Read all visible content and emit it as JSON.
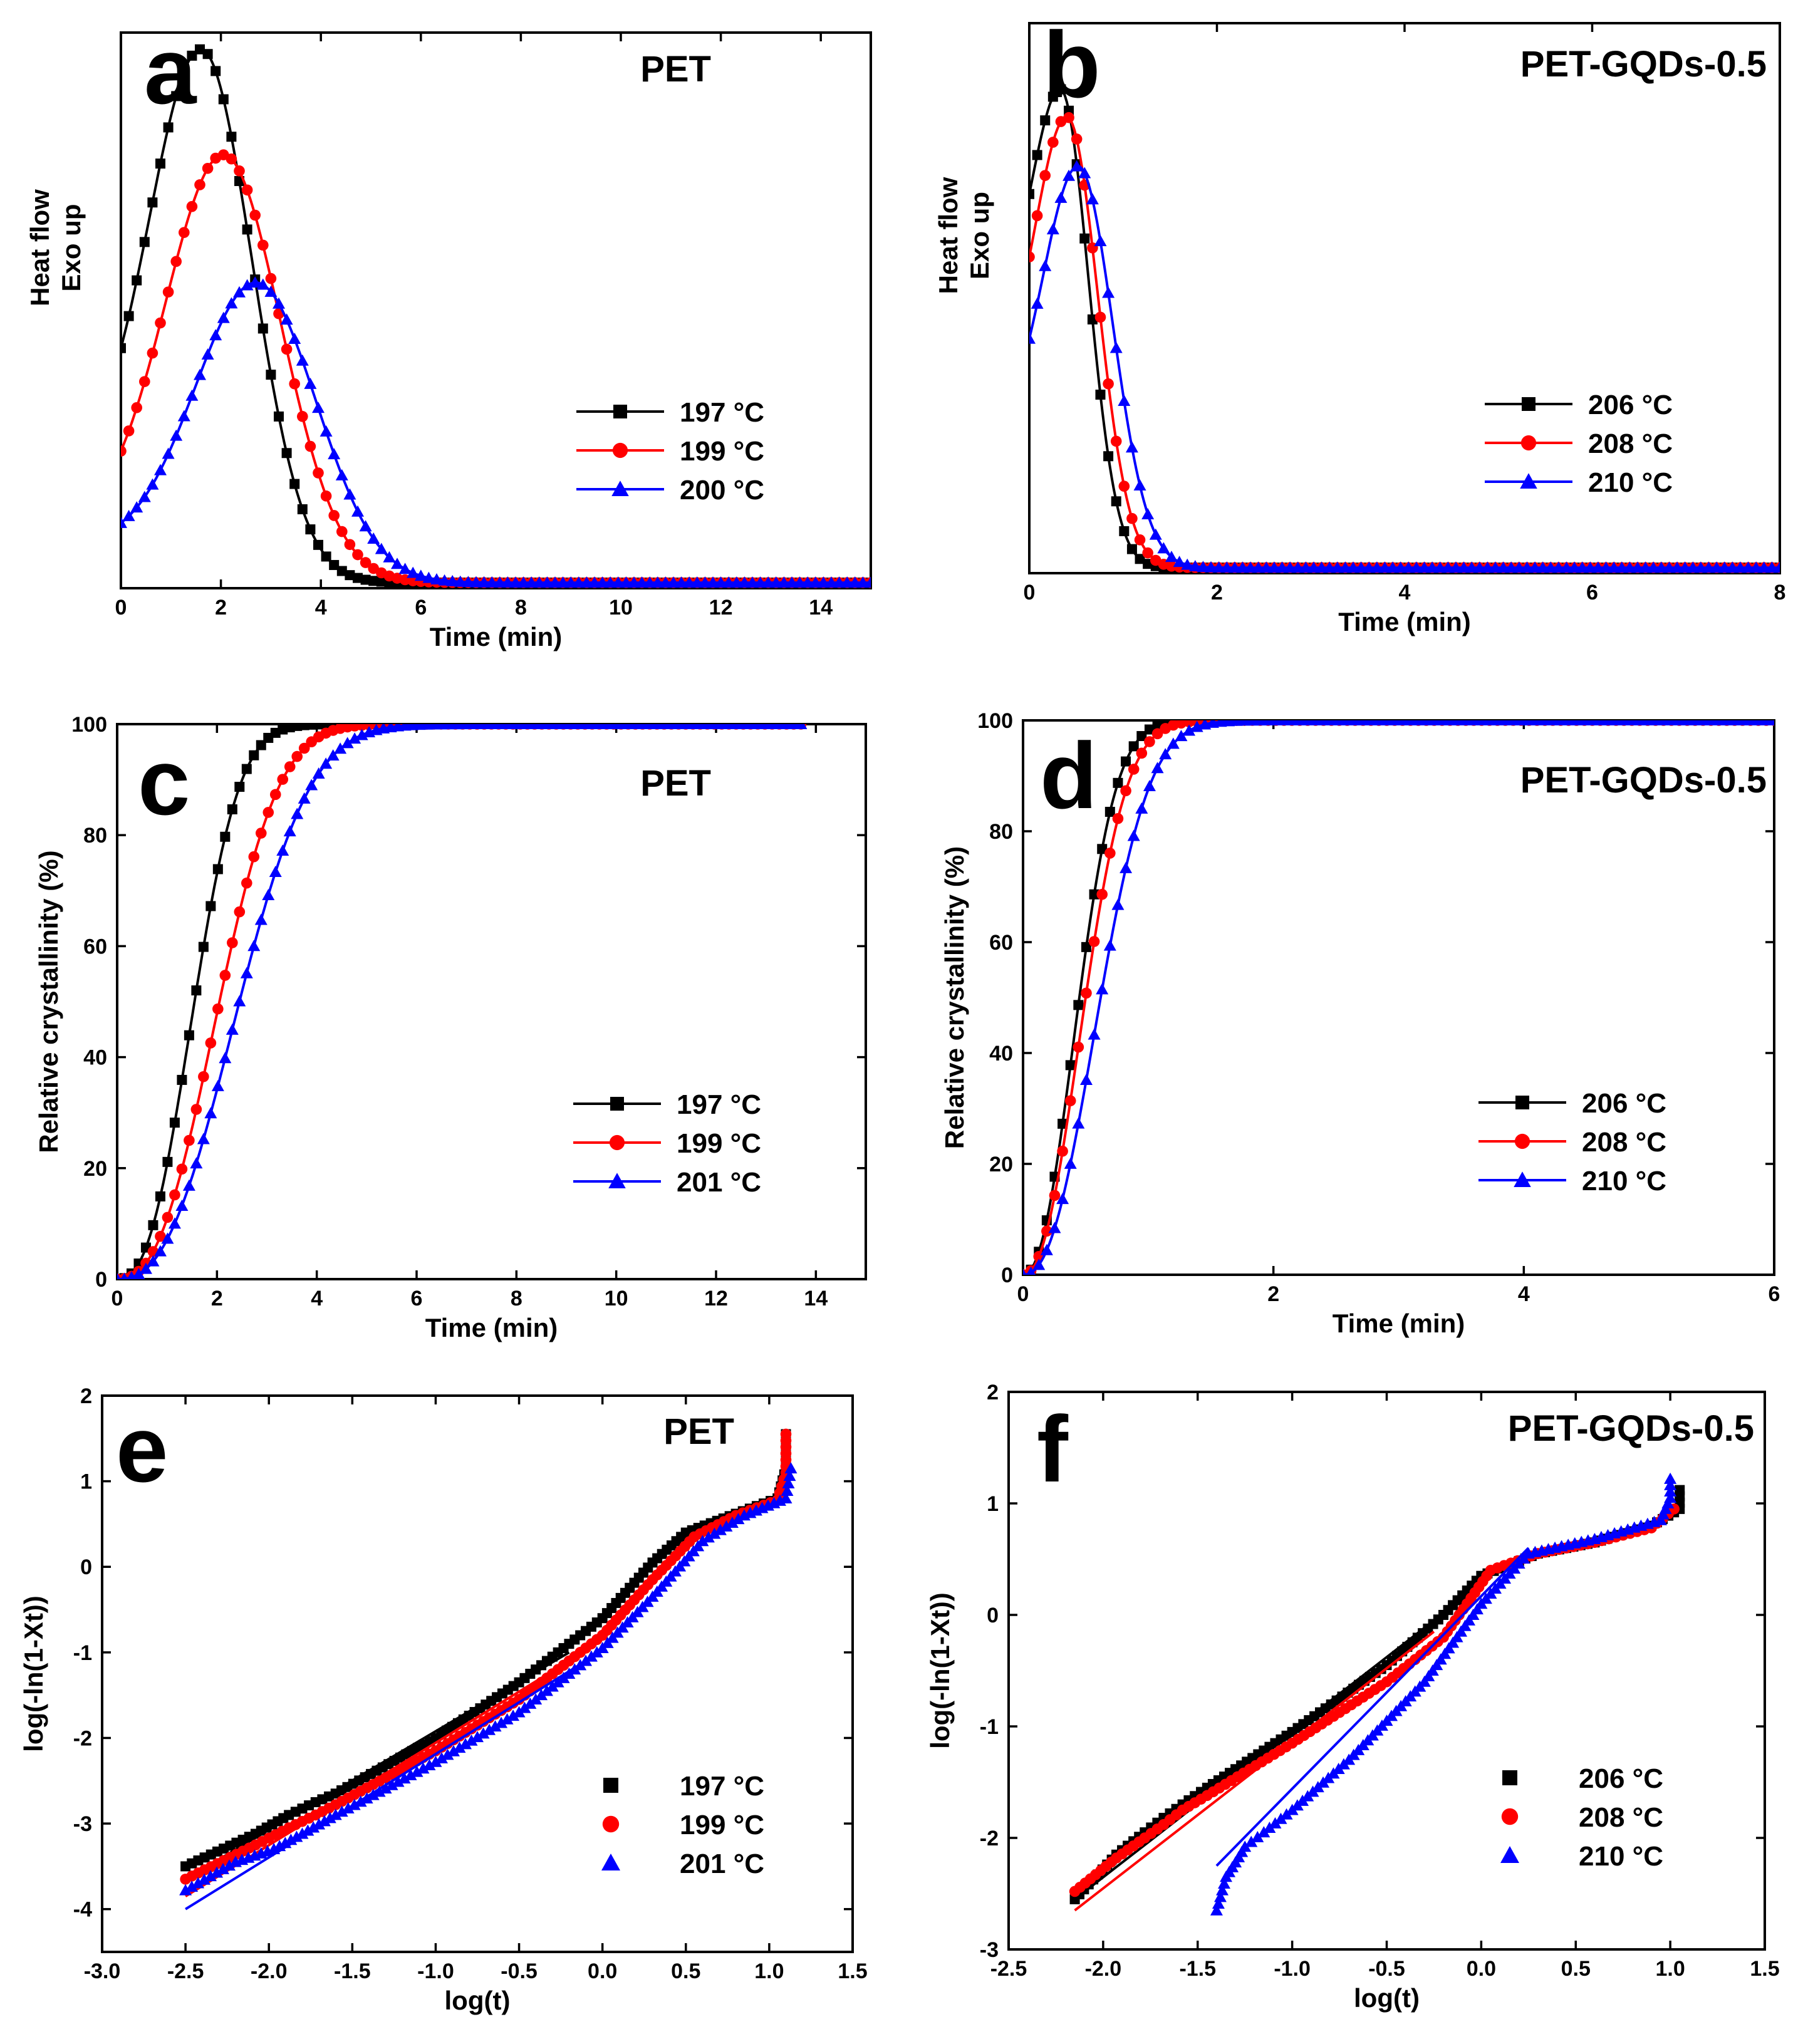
{
  "colors": {
    "c197": "#000000",
    "c199": "#ff0000",
    "c200": "#0000ff"
  },
  "chart_data": [
    {
      "id": "a",
      "panel_label": "a",
      "title": "PET",
      "type": "line",
      "xlabel": "Time (min)",
      "ylabel": "Heat flow",
      "ylabel2": "Exo up",
      "xlim": [
        0,
        15
      ],
      "ylim": [
        0,
        1
      ],
      "xticks": [
        0,
        2,
        4,
        6,
        8,
        10,
        12,
        14
      ],
      "yticks": [],
      "legend": "right-middle",
      "series": [
        {
          "name": "197 °C",
          "marker": "square",
          "color": "#000000",
          "base": 0.21,
          "peak": 0.97,
          "peak_x": 1.6,
          "width": 1.02,
          "tail": 0.01,
          "x_end": 15
        },
        {
          "name": "199 °C",
          "marker": "circle",
          "color": "#ff0000",
          "base": 0.11,
          "peak": 0.78,
          "peak_x": 2.05,
          "width": 1.15,
          "tail": 0.01,
          "x_end": 15
        },
        {
          "name": "200 °C",
          "marker": "triangle",
          "color": "#0000ff",
          "base": 0.08,
          "peak": 0.55,
          "peak_x": 2.7,
          "width": 1.2,
          "tail": 0.01,
          "x_end": 15
        }
      ]
    },
    {
      "id": "b",
      "panel_label": "b",
      "title": "PET-GQDs-0.5",
      "type": "line",
      "xlabel": "Time (min)",
      "ylabel": "Heat flow",
      "ylabel2": "Exo up",
      "xlim": [
        0,
        8
      ],
      "ylim": [
        0,
        1
      ],
      "xticks": [
        0,
        2,
        4,
        6,
        8
      ],
      "yticks": [],
      "legend": "right-middle",
      "series": [
        {
          "name": "206 °C",
          "marker": "square",
          "color": "#000000",
          "base": 0.46,
          "peak": 0.88,
          "peak_x": 0.33,
          "width": 0.3,
          "tail": 0.01,
          "x_end": 8
        },
        {
          "name": "208 °C",
          "marker": "circle",
          "color": "#ff0000",
          "base": 0.34,
          "peak": 0.83,
          "peak_x": 0.4,
          "width": 0.33,
          "tail": 0.01,
          "x_end": 8
        },
        {
          "name": "210 °C",
          "marker": "triangle",
          "color": "#0000ff",
          "base": 0.24,
          "peak": 0.74,
          "peak_x": 0.52,
          "width": 0.37,
          "tail": 0.01,
          "x_end": 8
        }
      ]
    },
    {
      "id": "c",
      "panel_label": "c",
      "title": "PET",
      "type": "line",
      "xlabel": "Time (min)",
      "ylabel": "Relative crystallinity (%)",
      "xlim": [
        0,
        15
      ],
      "ylim": [
        0,
        100
      ],
      "xticks": [
        0,
        2,
        4,
        6,
        8,
        10,
        12,
        14
      ],
      "yticks": [
        0,
        20,
        40,
        60,
        80,
        100
      ],
      "legend": "right-lower",
      "series": [
        {
          "name": "197 °C",
          "marker": "square",
          "color": "#000000",
          "t_half": 1.55,
          "n": 2.5,
          "x_end": 13.7
        },
        {
          "name": "199 °C",
          "marker": "circle",
          "color": "#ff0000",
          "t_half": 2.05,
          "n": 2.5,
          "x_end": 13.7
        },
        {
          "name": "201 °C",
          "marker": "triangle",
          "color": "#0000ff",
          "t_half": 2.45,
          "n": 2.5,
          "x_end": 13.7
        }
      ]
    },
    {
      "id": "d",
      "panel_label": "d",
      "title": "PET-GQDs-0.5",
      "type": "line",
      "xlabel": "Time (min)",
      "ylabel": "Relative crystallinity (%)",
      "xlim": [
        0,
        6
      ],
      "ylim": [
        0,
        100
      ],
      "xticks": [
        0,
        2,
        4,
        6
      ],
      "yticks": [
        0,
        20,
        40,
        60,
        80,
        100
      ],
      "legend": "right-lower",
      "series": [
        {
          "name": "206 °C",
          "marker": "square",
          "color": "#000000",
          "t_half": 0.45,
          "n": 2.2,
          "x_end": 6
        },
        {
          "name": "208 °C",
          "marker": "circle",
          "color": "#ff0000",
          "t_half": 0.5,
          "n": 2.2,
          "x_end": 6
        },
        {
          "name": "210 °C",
          "marker": "triangle",
          "color": "#0000ff",
          "t_half": 0.62,
          "n": 2.3,
          "x_end": 6
        }
      ]
    },
    {
      "id": "e",
      "panel_label": "e",
      "title": "PET",
      "type": "scatter",
      "xlabel": "log(t)",
      "ylabel": "log(-ln(1-Xt))",
      "xlim": [
        -3.0,
        1.5
      ],
      "ylim": [
        -4.5,
        2
      ],
      "xticks": [
        -3.0,
        -2.5,
        -2.0,
        -1.5,
        -1.0,
        -0.5,
        0.0,
        0.5,
        1.0,
        1.5
      ],
      "yticks": [
        -4,
        -3,
        -2,
        -1,
        0,
        1,
        2
      ],
      "legend": "right-lower",
      "series": [
        {
          "name": "197 °C",
          "marker": "square",
          "color": "#000000",
          "points": [
            [
              -2.5,
              -3.5
            ],
            [
              -2.08,
              -3.12
            ],
            [
              -1.88,
              -2.9
            ],
            [
              -1.72,
              -2.75
            ],
            [
              -1.6,
              -2.65
            ],
            [
              -1.0,
              -2.0
            ],
            [
              -0.5,
              -1.35
            ],
            [
              0.0,
              -0.6
            ],
            [
              0.3,
              0.05
            ],
            [
              0.5,
              0.4
            ],
            [
              0.8,
              0.62
            ],
            [
              1.05,
              0.8
            ],
            [
              1.1,
              1.15
            ],
            [
              1.1,
              1.55
            ]
          ],
          "fit": [
            [
              -2.5,
              -3.65
            ],
            [
              -0.2,
              -1.0
            ]
          ]
        },
        {
          "name": "199 °C",
          "marker": "circle",
          "color": "#ff0000",
          "points": [
            [
              -2.5,
              -3.65
            ],
            [
              -2.08,
              -3.25
            ],
            [
              -1.88,
              -3.05
            ],
            [
              -1.72,
              -2.9
            ],
            [
              -1.6,
              -2.78
            ],
            [
              -1.0,
              -2.15
            ],
            [
              -0.5,
              -1.55
            ],
            [
              0.0,
              -0.8
            ],
            [
              0.3,
              -0.15
            ],
            [
              0.55,
              0.35
            ],
            [
              0.8,
              0.6
            ],
            [
              1.05,
              0.78
            ],
            [
              1.1,
              1.1
            ],
            [
              1.1,
              1.55
            ]
          ],
          "fit": [
            [
              -2.5,
              -3.85
            ],
            [
              -0.2,
              -1.1
            ]
          ]
        },
        {
          "name": "201 °C",
          "marker": "triangle",
          "color": "#0000ff",
          "points": [
            [
              -2.5,
              -3.78
            ],
            [
              -2.2,
              -3.45
            ],
            [
              -1.97,
              -3.3
            ],
            [
              -1.8,
              -3.12
            ],
            [
              -1.6,
              -2.9
            ],
            [
              -1.0,
              -2.28
            ],
            [
              -0.5,
              -1.7
            ],
            [
              0.0,
              -0.95
            ],
            [
              0.3,
              -0.35
            ],
            [
              0.6,
              0.3
            ],
            [
              0.85,
              0.6
            ],
            [
              1.1,
              0.8
            ],
            [
              1.13,
              1.15
            ]
          ],
          "fit": [
            [
              -2.5,
              -4.0
            ],
            [
              -0.1,
              -1.1
            ]
          ]
        }
      ]
    },
    {
      "id": "f",
      "panel_label": "f",
      "title": "PET-GQDs-0.5",
      "type": "scatter",
      "xlabel": "log(t)",
      "ylabel": "log(-ln(1-Xt))",
      "xlim": [
        -2.5,
        1.5
      ],
      "ylim": [
        -3,
        2
      ],
      "xticks": [
        -2.5,
        -2.0,
        -1.5,
        -1.0,
        -0.5,
        0.0,
        0.5,
        1.0,
        1.5
      ],
      "yticks": [
        -3,
        -2,
        -1,
        0,
        1,
        2
      ],
      "legend": "right-lower",
      "series": [
        {
          "name": "206 °C",
          "marker": "square",
          "color": "#000000",
          "points": [
            [
              -2.15,
              -2.55
            ],
            [
              -1.93,
              -2.15
            ],
            [
              -1.78,
              -1.95
            ],
            [
              -1.68,
              -1.82
            ],
            [
              -1.58,
              -1.7
            ],
            [
              -1.45,
              -1.55
            ],
            [
              -1.0,
              -1.05
            ],
            [
              -0.5,
              -0.45
            ],
            [
              -0.2,
              0.0
            ],
            [
              0.0,
              0.35
            ],
            [
              0.3,
              0.55
            ],
            [
              0.6,
              0.65
            ],
            [
              0.9,
              0.8
            ],
            [
              1.05,
              0.95
            ],
            [
              1.05,
              1.12
            ]
          ],
          "fit": [
            [
              -2.15,
              -2.55
            ],
            [
              -0.25,
              -0.05
            ]
          ]
        },
        {
          "name": "208 °C",
          "marker": "circle",
          "color": "#ff0000",
          "points": [
            [
              -2.15,
              -2.48
            ],
            [
              -1.93,
              -2.18
            ],
            [
              -1.78,
              -2.0
            ],
            [
              -1.68,
              -1.88
            ],
            [
              -1.58,
              -1.75
            ],
            [
              -1.45,
              -1.62
            ],
            [
              -1.0,
              -1.15
            ],
            [
              -0.5,
              -0.6
            ],
            [
              -0.2,
              -0.2
            ],
            [
              0.05,
              0.4
            ],
            [
              0.3,
              0.55
            ],
            [
              0.6,
              0.65
            ],
            [
              0.9,
              0.78
            ],
            [
              1.02,
              0.95
            ]
          ],
          "fit": [
            [
              -2.15,
              -2.65
            ],
            [
              -0.25,
              -0.15
            ]
          ]
        },
        {
          "name": "210 °C",
          "marker": "triangle",
          "color": "#0000ff",
          "points": [
            [
              -1.4,
              -2.65
            ],
            [
              -1.35,
              -2.35
            ],
            [
              -1.3,
              -2.22
            ],
            [
              -1.25,
              -2.08
            ],
            [
              -1.15,
              -1.95
            ],
            [
              -1.0,
              -1.75
            ],
            [
              -0.7,
              -1.3
            ],
            [
              -0.3,
              -0.6
            ],
            [
              0.0,
              0.1
            ],
            [
              0.25,
              0.55
            ],
            [
              0.6,
              0.68
            ],
            [
              0.95,
              0.85
            ],
            [
              1.0,
              1.05
            ],
            [
              1.0,
              1.22
            ]
          ],
          "fit": [
            [
              -1.4,
              -2.25
            ],
            [
              0.25,
              0.6
            ]
          ]
        }
      ]
    }
  ]
}
